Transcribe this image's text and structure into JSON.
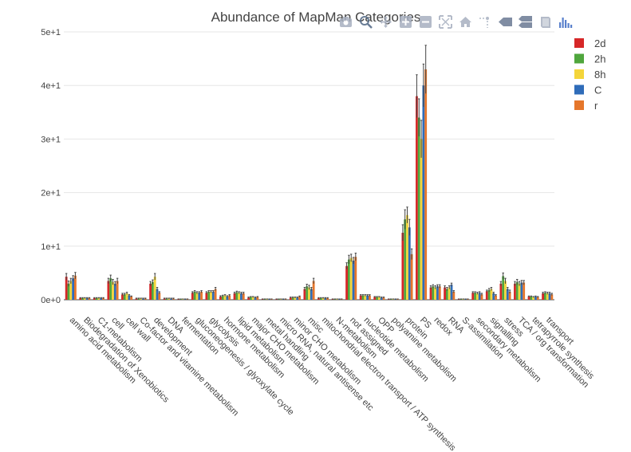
{
  "colors": {
    "2d": "#d62728",
    "2h": "#4fa63d",
    "8h": "#f4d53a",
    "C": "#2f6cb9",
    "r": "#e5762b"
  },
  "modebar": {
    "icons": [
      "camera-icon",
      "zoom-icon",
      "pan-icon",
      "zoom-in-icon",
      "zoom-out-icon",
      "autoscale-icon",
      "reset-axes-icon",
      "spike-lines-icon",
      "hover-closest-icon",
      "hover-compare-icon",
      "edit-chart-icon",
      "plotly-logo-icon"
    ]
  },
  "chart_data": {
    "type": "bar",
    "title": "Abundance of MapMan Categories",
    "ylim": [
      0,
      50
    ],
    "yticks": [
      0,
      10,
      20,
      30,
      40,
      50
    ],
    "ytick_labels": [
      "0e+0",
      "1e+1",
      "2e+1",
      "3e+1",
      "4e+1",
      "5e+1"
    ],
    "legend_position": "top-right",
    "grid": true,
    "categories": [
      "amino acid metabolism",
      "Biodegradation of Xenobiotics",
      "C1-metabolism",
      "cell",
      "cell wall",
      "Co-factor and vitamine metabolism",
      "development",
      "DNA",
      "fermentation",
      "gluconeogenesis / glyoxylate cycle",
      "glycolysis",
      "hormone metabolism",
      "lipid metabolism",
      "major CHO metabolism",
      "metal handling",
      "micro RNA, natural antisense etc",
      "minor CHO metabolism",
      "misc",
      "mitochondrial electron transport / ATP synthesis",
      "N-metabolism",
      "not assigned",
      "nucleotide metabolism",
      "OPP",
      "polyamine metabolism",
      "protein",
      "PS",
      "redox",
      "RNA",
      "S-assimilation",
      "secondary metabolism",
      "signalling",
      "stress",
      "TCA / org transformation",
      "tetrapyrrole synthesis",
      "transport"
    ],
    "series": [
      {
        "name": "2d",
        "values": [
          4.3,
          0.3,
          0.3,
          3.5,
          1.0,
          0.2,
          3.0,
          0.2,
          0.1,
          1.3,
          1.3,
          0.6,
          1.2,
          0.4,
          0.1,
          0.1,
          0.4,
          2.0,
          0.3,
          0.1,
          6.3,
          0.8,
          0.5,
          0.1,
          12.5,
          38.0,
          2.3,
          2.3,
          0.1,
          1.3,
          1.6,
          3.0,
          3.0,
          0.6,
          1.2
        ],
        "errors": [
          0.6,
          0.1,
          0.1,
          0.5,
          0.2,
          0.1,
          0.4,
          0.1,
          0.05,
          0.2,
          0.2,
          0.15,
          0.2,
          0.1,
          0.05,
          0.05,
          0.1,
          0.3,
          0.1,
          0.05,
          0.6,
          0.15,
          0.1,
          0.05,
          1.5,
          4.0,
          0.3,
          0.3,
          0.05,
          0.2,
          0.2,
          0.4,
          0.4,
          0.1,
          0.2
        ]
      },
      {
        "name": "2h",
        "values": [
          3.0,
          0.3,
          0.3,
          4.0,
          1.0,
          0.2,
          3.3,
          0.2,
          0.1,
          1.5,
          1.5,
          0.7,
          1.4,
          0.5,
          0.1,
          0.1,
          0.4,
          2.5,
          0.3,
          0.1,
          7.5,
          0.8,
          0.5,
          0.1,
          15.0,
          34.0,
          2.5,
          2.0,
          0.1,
          1.3,
          1.8,
          4.4,
          3.3,
          0.6,
          1.3
        ],
        "errors": [
          0.5,
          0.1,
          0.1,
          0.6,
          0.2,
          0.1,
          0.4,
          0.1,
          0.05,
          0.2,
          0.2,
          0.15,
          0.2,
          0.1,
          0.05,
          0.05,
          0.1,
          0.4,
          0.1,
          0.05,
          0.8,
          0.15,
          0.1,
          0.05,
          1.8,
          3.5,
          0.3,
          0.3,
          0.05,
          0.2,
          0.3,
          0.6,
          0.5,
          0.1,
          0.2
        ]
      },
      {
        "name": "8h",
        "values": [
          3.5,
          0.3,
          0.3,
          3.3,
          1.2,
          0.2,
          4.3,
          0.2,
          0.1,
          1.3,
          1.5,
          0.8,
          1.3,
          0.5,
          0.1,
          0.1,
          0.4,
          2.3,
          0.3,
          0.1,
          7.8,
          0.8,
          0.5,
          0.1,
          15.8,
          30.0,
          2.3,
          2.3,
          0.1,
          1.2,
          2.0,
          3.5,
          3.0,
          0.5,
          1.2
        ],
        "errors": [
          0.5,
          0.1,
          0.1,
          0.5,
          0.2,
          0.1,
          0.6,
          0.1,
          0.05,
          0.2,
          0.2,
          0.15,
          0.2,
          0.1,
          0.05,
          0.05,
          0.1,
          0.4,
          0.1,
          0.05,
          0.7,
          0.15,
          0.1,
          0.05,
          1.5,
          3.5,
          0.3,
          0.3,
          0.05,
          0.2,
          0.3,
          0.5,
          0.4,
          0.1,
          0.2
        ]
      },
      {
        "name": "C",
        "values": [
          4.0,
          0.3,
          0.3,
          3.0,
          0.8,
          0.2,
          2.0,
          0.2,
          0.1,
          1.3,
          1.5,
          0.6,
          1.2,
          0.4,
          0.1,
          0.1,
          0.4,
          2.0,
          0.3,
          0.1,
          7.3,
          0.8,
          0.4,
          0.1,
          13.5,
          40.0,
          2.5,
          2.8,
          0.1,
          1.3,
          1.2,
          2.0,
          3.2,
          0.6,
          1.2
        ],
        "errors": [
          0.5,
          0.1,
          0.1,
          0.4,
          0.15,
          0.1,
          0.3,
          0.1,
          0.05,
          0.2,
          0.2,
          0.15,
          0.2,
          0.1,
          0.05,
          0.05,
          0.1,
          0.3,
          0.1,
          0.05,
          0.6,
          0.15,
          0.1,
          0.05,
          1.5,
          4.0,
          0.3,
          0.3,
          0.05,
          0.2,
          0.2,
          0.3,
          0.4,
          0.1,
          0.2
        ]
      },
      {
        "name": "r",
        "values": [
          4.5,
          0.3,
          0.3,
          3.5,
          0.6,
          0.2,
          1.3,
          0.2,
          0.1,
          1.5,
          2.0,
          0.8,
          1.2,
          0.5,
          0.1,
          0.1,
          0.6,
          3.5,
          0.3,
          0.1,
          8.0,
          0.8,
          0.4,
          0.1,
          8.5,
          43.0,
          2.5,
          1.5,
          0.1,
          1.0,
          0.8,
          1.5,
          3.2,
          0.5,
          1.0
        ],
        "errors": [
          0.6,
          0.1,
          0.1,
          0.5,
          0.1,
          0.1,
          0.2,
          0.1,
          0.05,
          0.2,
          0.3,
          0.15,
          0.2,
          0.1,
          0.05,
          0.05,
          0.1,
          0.5,
          0.1,
          0.05,
          0.7,
          0.15,
          0.1,
          0.05,
          1.0,
          4.5,
          0.3,
          0.2,
          0.05,
          0.2,
          0.15,
          0.3,
          0.4,
          0.1,
          0.2
        ]
      }
    ]
  }
}
